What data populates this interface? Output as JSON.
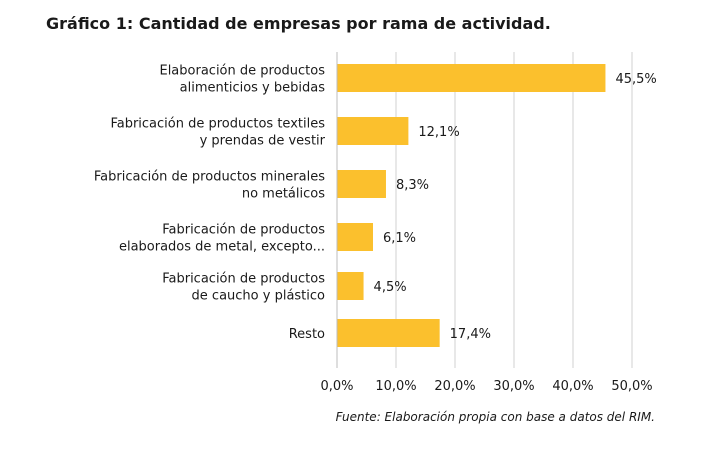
{
  "chart_data": {
    "type": "bar",
    "orientation": "horizontal",
    "title": "Gráfico 1: Cantidad de empresas por rama de actividad.",
    "categories": [
      [
        "Elaboración de productos",
        "alimenticios y bebidas"
      ],
      [
        "Fabricación de productos textiles",
        "y prendas de vestir"
      ],
      [
        "Fabricación de productos minerales",
        "no metálicos"
      ],
      [
        "Fabricación de productos",
        "elaborados de metal, excepto..."
      ],
      [
        "Fabricación de productos",
        "de caucho y plástico"
      ],
      [
        "Resto"
      ]
    ],
    "values": [
      45.5,
      12.1,
      8.3,
      6.1,
      4.5,
      17.4
    ],
    "value_labels": [
      "45,5%",
      "12,1%",
      "8,3%",
      "6,1%",
      "4,5%",
      "17,4%"
    ],
    "xlim": [
      0,
      50
    ],
    "xticks": [
      0,
      10,
      20,
      30,
      40,
      50
    ],
    "xtick_labels": [
      "0,0%",
      "10,0%",
      "20,0%",
      "30,0%",
      "40,0%",
      "50,0%"
    ],
    "xlabel": "",
    "ylabel": "",
    "grid": "vertical",
    "bar_color": "#FBC02D",
    "grid_color": "#d0d0d0",
    "source": "Fuente: Elaboración propia con base a datos del RIM."
  }
}
